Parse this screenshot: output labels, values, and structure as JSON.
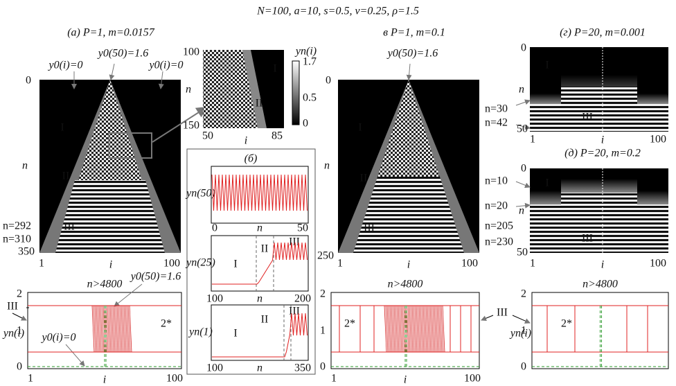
{
  "title": "N=100, a=10, s=0.5, v=0.25, ρ=1.5",
  "panel_a": {
    "label": "(a)  P=1, m=0.0157",
    "annotations": [
      "y0(i)=0",
      "y0(50)=1.6",
      "y0(i)=0"
    ],
    "regions": [
      "I",
      "II",
      "III"
    ],
    "y_label": "n",
    "x_label": "i",
    "y_ticks": [
      "0",
      "350"
    ],
    "x_ticks": [
      "1",
      "100"
    ],
    "markers": [
      "n=292",
      "n=310"
    ]
  },
  "inset": {
    "y_ticks": [
      "100",
      "150"
    ],
    "x_ticks": [
      "50",
      "85"
    ],
    "y_label": "n",
    "x_label": "i",
    "regions": [
      "I",
      "II"
    ],
    "colorbar_label": "yn(i)",
    "colorbar_ticks": [
      "1.7",
      "0.5",
      "0"
    ]
  },
  "panel_b": {
    "label": "(б)",
    "plots": [
      {
        "y_label": "yn(50)",
        "x_ticks": [
          "0",
          "50"
        ],
        "x_label": "n"
      },
      {
        "y_label": "yn(25)",
        "x_ticks": [
          "100",
          "200"
        ],
        "x_label": "n",
        "regions": [
          "I",
          "II",
          "III"
        ]
      },
      {
        "y_label": "yn(1)",
        "x_ticks": [
          "100",
          "350"
        ],
        "x_label": "n",
        "regions": [
          "I",
          "II",
          "III"
        ]
      }
    ]
  },
  "panel_v": {
    "label": "в  P=1, m=0.1",
    "annotation": "y0(50)=1.6",
    "regions": [
      "I",
      "II",
      "III"
    ],
    "y_label": "n",
    "x_label": "i",
    "y_ticks": [
      "0",
      "250"
    ],
    "x_ticks": [
      "1",
      "100"
    ],
    "markers": [
      "n=205",
      "n=230"
    ]
  },
  "panel_g": {
    "label": "(г)  P=20, m=0.001",
    "regions": [
      "I",
      "III"
    ],
    "y_label": "n",
    "x_label": "i",
    "y_ticks": [
      "0",
      "50"
    ],
    "x_ticks": [
      "1",
      "100"
    ],
    "markers": [
      "n=30",
      "n=42"
    ]
  },
  "panel_d": {
    "label": "(д) P=20, m=0.2",
    "regions": [
      "I",
      "III"
    ],
    "y_label": "n",
    "y_ticks": [
      "0",
      "50"
    ],
    "markers": [
      "n=10",
      "n=20"
    ]
  },
  "bottom": [
    {
      "header": "n>4800",
      "y_ticks": [
        "2",
        "1",
        "0"
      ],
      "x_ticks": [
        "1",
        "100"
      ],
      "x_label": "i",
      "y_label": "yn(i)",
      "regime": "2*",
      "region": "III",
      "annotations": [
        "y0(50)=1.6",
        "y0(i)=0"
      ]
    },
    {
      "header": "n>4800",
      "y_ticks": [
        "2",
        "1",
        "0"
      ],
      "x_ticks": [
        "1",
        "100"
      ],
      "x_label": "i",
      "regime": "2*",
      "region": "III"
    },
    {
      "header": "n>4800",
      "y_ticks": [
        "2",
        "1",
        "0"
      ],
      "x_ticks": [
        "1",
        "100"
      ],
      "x_label": "i",
      "y_label": "yn(i)",
      "regime": "2*"
    }
  ]
}
